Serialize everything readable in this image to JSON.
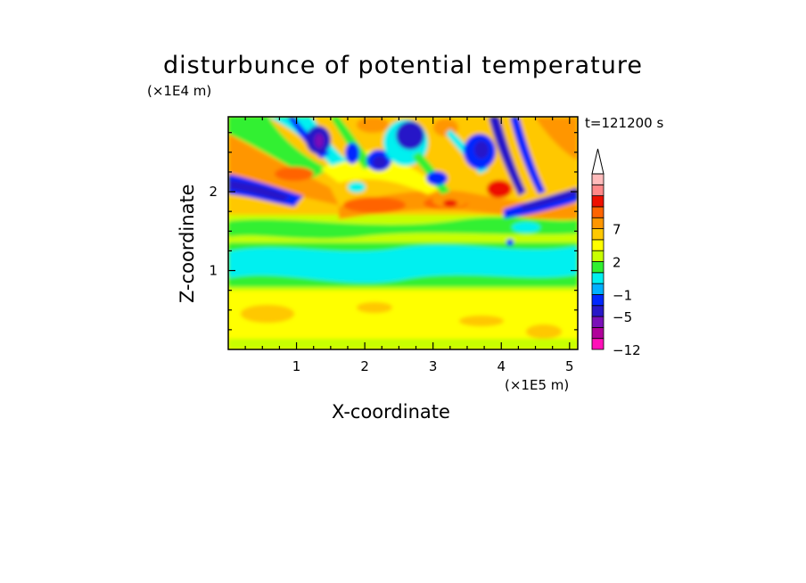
{
  "chart_data": {
    "type": "heatmap",
    "title": "disturbunce of potential temperature",
    "time_label": "t=121200 s",
    "xlabel": "X-coordinate",
    "ylabel": "Z-coordinate",
    "x_scale_label": "(×1E5 m)",
    "z_scale_label": "(×1E4 m)",
    "xlim": [
      0,
      5.12
    ],
    "zlim": [
      0,
      2.95
    ],
    "x_ticks": [
      1,
      2,
      3,
      4,
      5
    ],
    "z_ticks": [
      1,
      2
    ],
    "colorbar": {
      "levels": [
        -12,
        -9,
        -7,
        -5,
        -3,
        -1,
        0,
        1,
        2,
        3,
        5,
        7,
        9,
        11
      ],
      "colors": [
        "#ff10b8",
        "#b0009a",
        "#7a10b8",
        "#2818c8",
        "#0028ff",
        "#00b0ff",
        "#00f0f0",
        "#30f030",
        "#c8ff00",
        "#ffff00",
        "#ffc800",
        "#ff9600",
        "#ff6400",
        "#ee1000",
        "#ff8888",
        "#ffbbbb"
      ],
      "tick_labels": [
        "-12",
        "-5",
        "-1",
        "2",
        "7"
      ],
      "extend": "max"
    },
    "field_description": [
      {
        "z_range": [
          0,
          0.95
        ],
        "values_approx": "0 to 3 (yellow, orange patches)"
      },
      {
        "z_range": [
          0.95,
          1.55
        ],
        "values_approx": "-1 to 0 (cyan/green band)"
      },
      {
        "z_range": [
          1.55,
          2.95
        ],
        "values_approx": "-7 to 7 (wave pattern, blue and orange cells)"
      }
    ]
  }
}
